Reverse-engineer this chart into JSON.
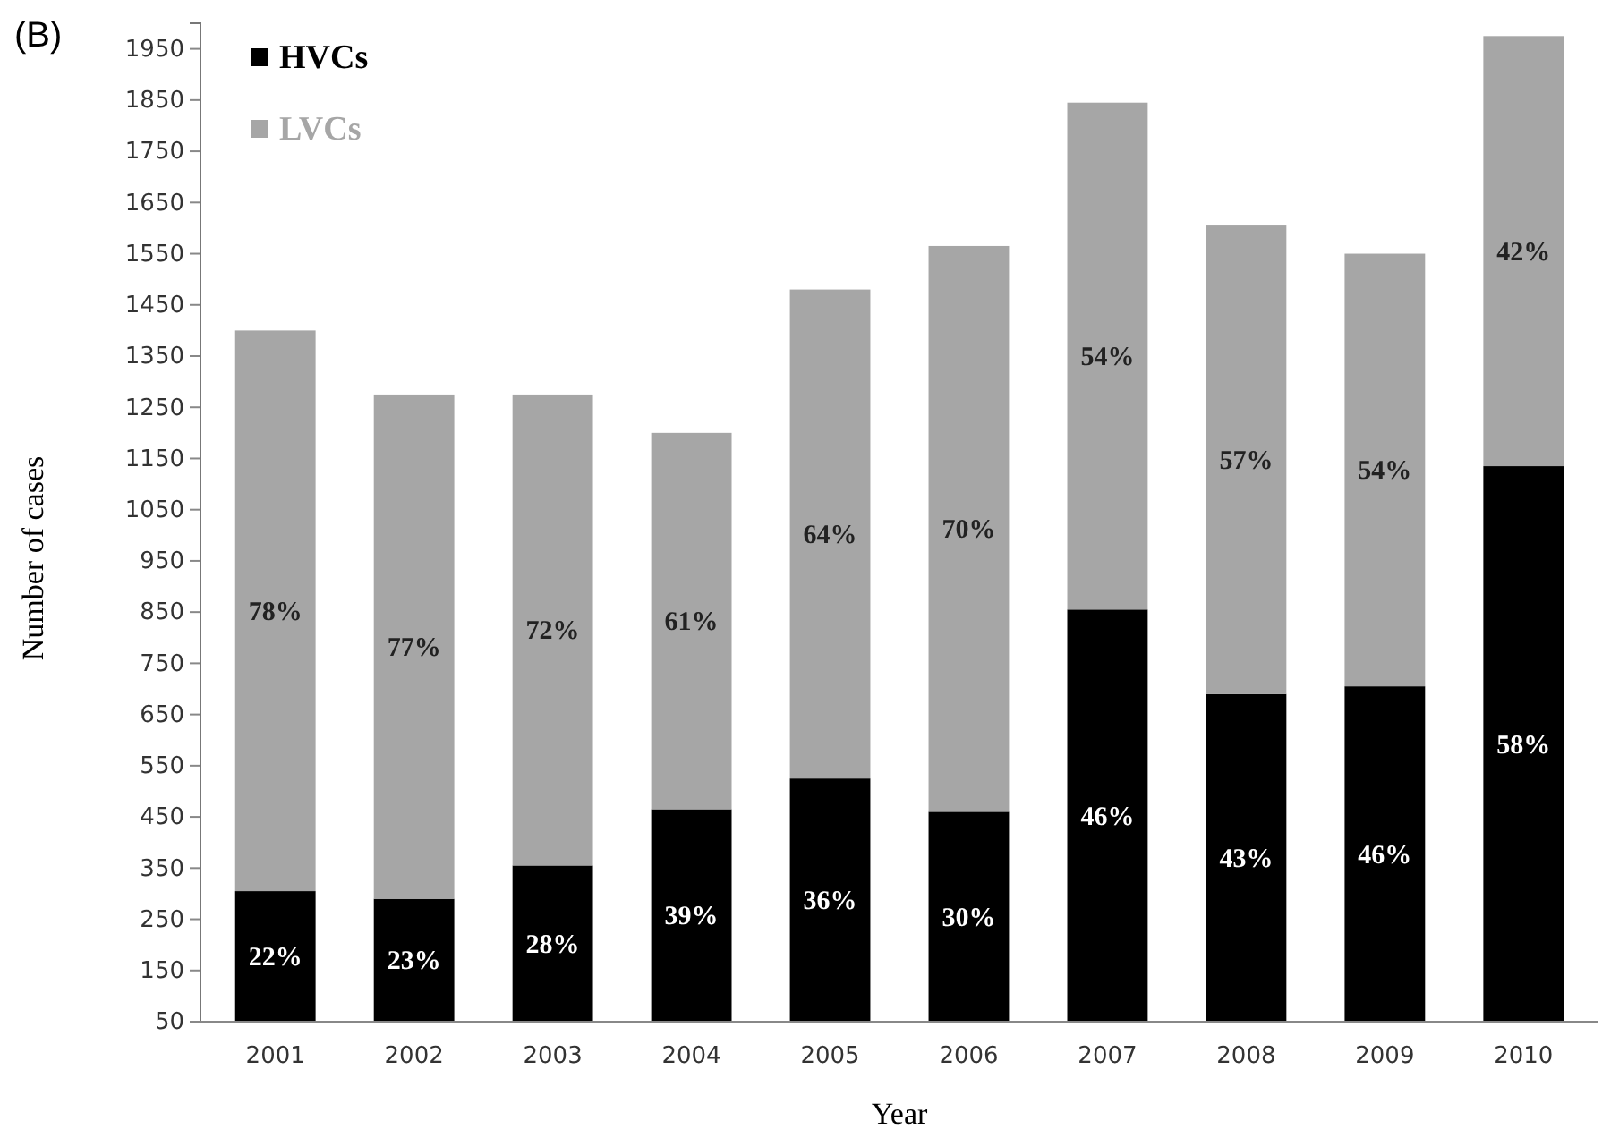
{
  "chart_data": {
    "type": "bar",
    "title": "(B)",
    "xlabel": "Year",
    "ylabel": "Number of cases",
    "categories": [
      "2001",
      "2002",
      "2003",
      "2004",
      "2005",
      "2006",
      "2007",
      "2008",
      "2009",
      "2010"
    ],
    "stacked": true,
    "series": [
      {
        "name": "HVCs",
        "color": "#000000",
        "values": [
          305,
          290,
          355,
          465,
          525,
          460,
          855,
          690,
          705,
          1135
        ]
      },
      {
        "name": "LVCs",
        "color": "#a6a6a6",
        "values": [
          1095,
          985,
          920,
          735,
          955,
          1105,
          990,
          915,
          845,
          840
        ]
      }
    ],
    "ylim": [
      50,
      2000
    ],
    "yticks": [
      50,
      150,
      250,
      350,
      450,
      550,
      650,
      750,
      850,
      950,
      1050,
      1150,
      1250,
      1350,
      1450,
      1550,
      1650,
      1750,
      1850,
      1950
    ],
    "legend": "top left",
    "annotations": [
      "22%",
      "23%",
      "28%",
      "39%",
      "36%",
      "30%",
      "46%",
      "43%",
      "46%",
      "58%",
      "78%",
      "77%",
      "72%",
      "61%",
      "64%",
      "70%",
      "54%",
      "57%",
      "54%",
      "42%"
    ]
  }
}
